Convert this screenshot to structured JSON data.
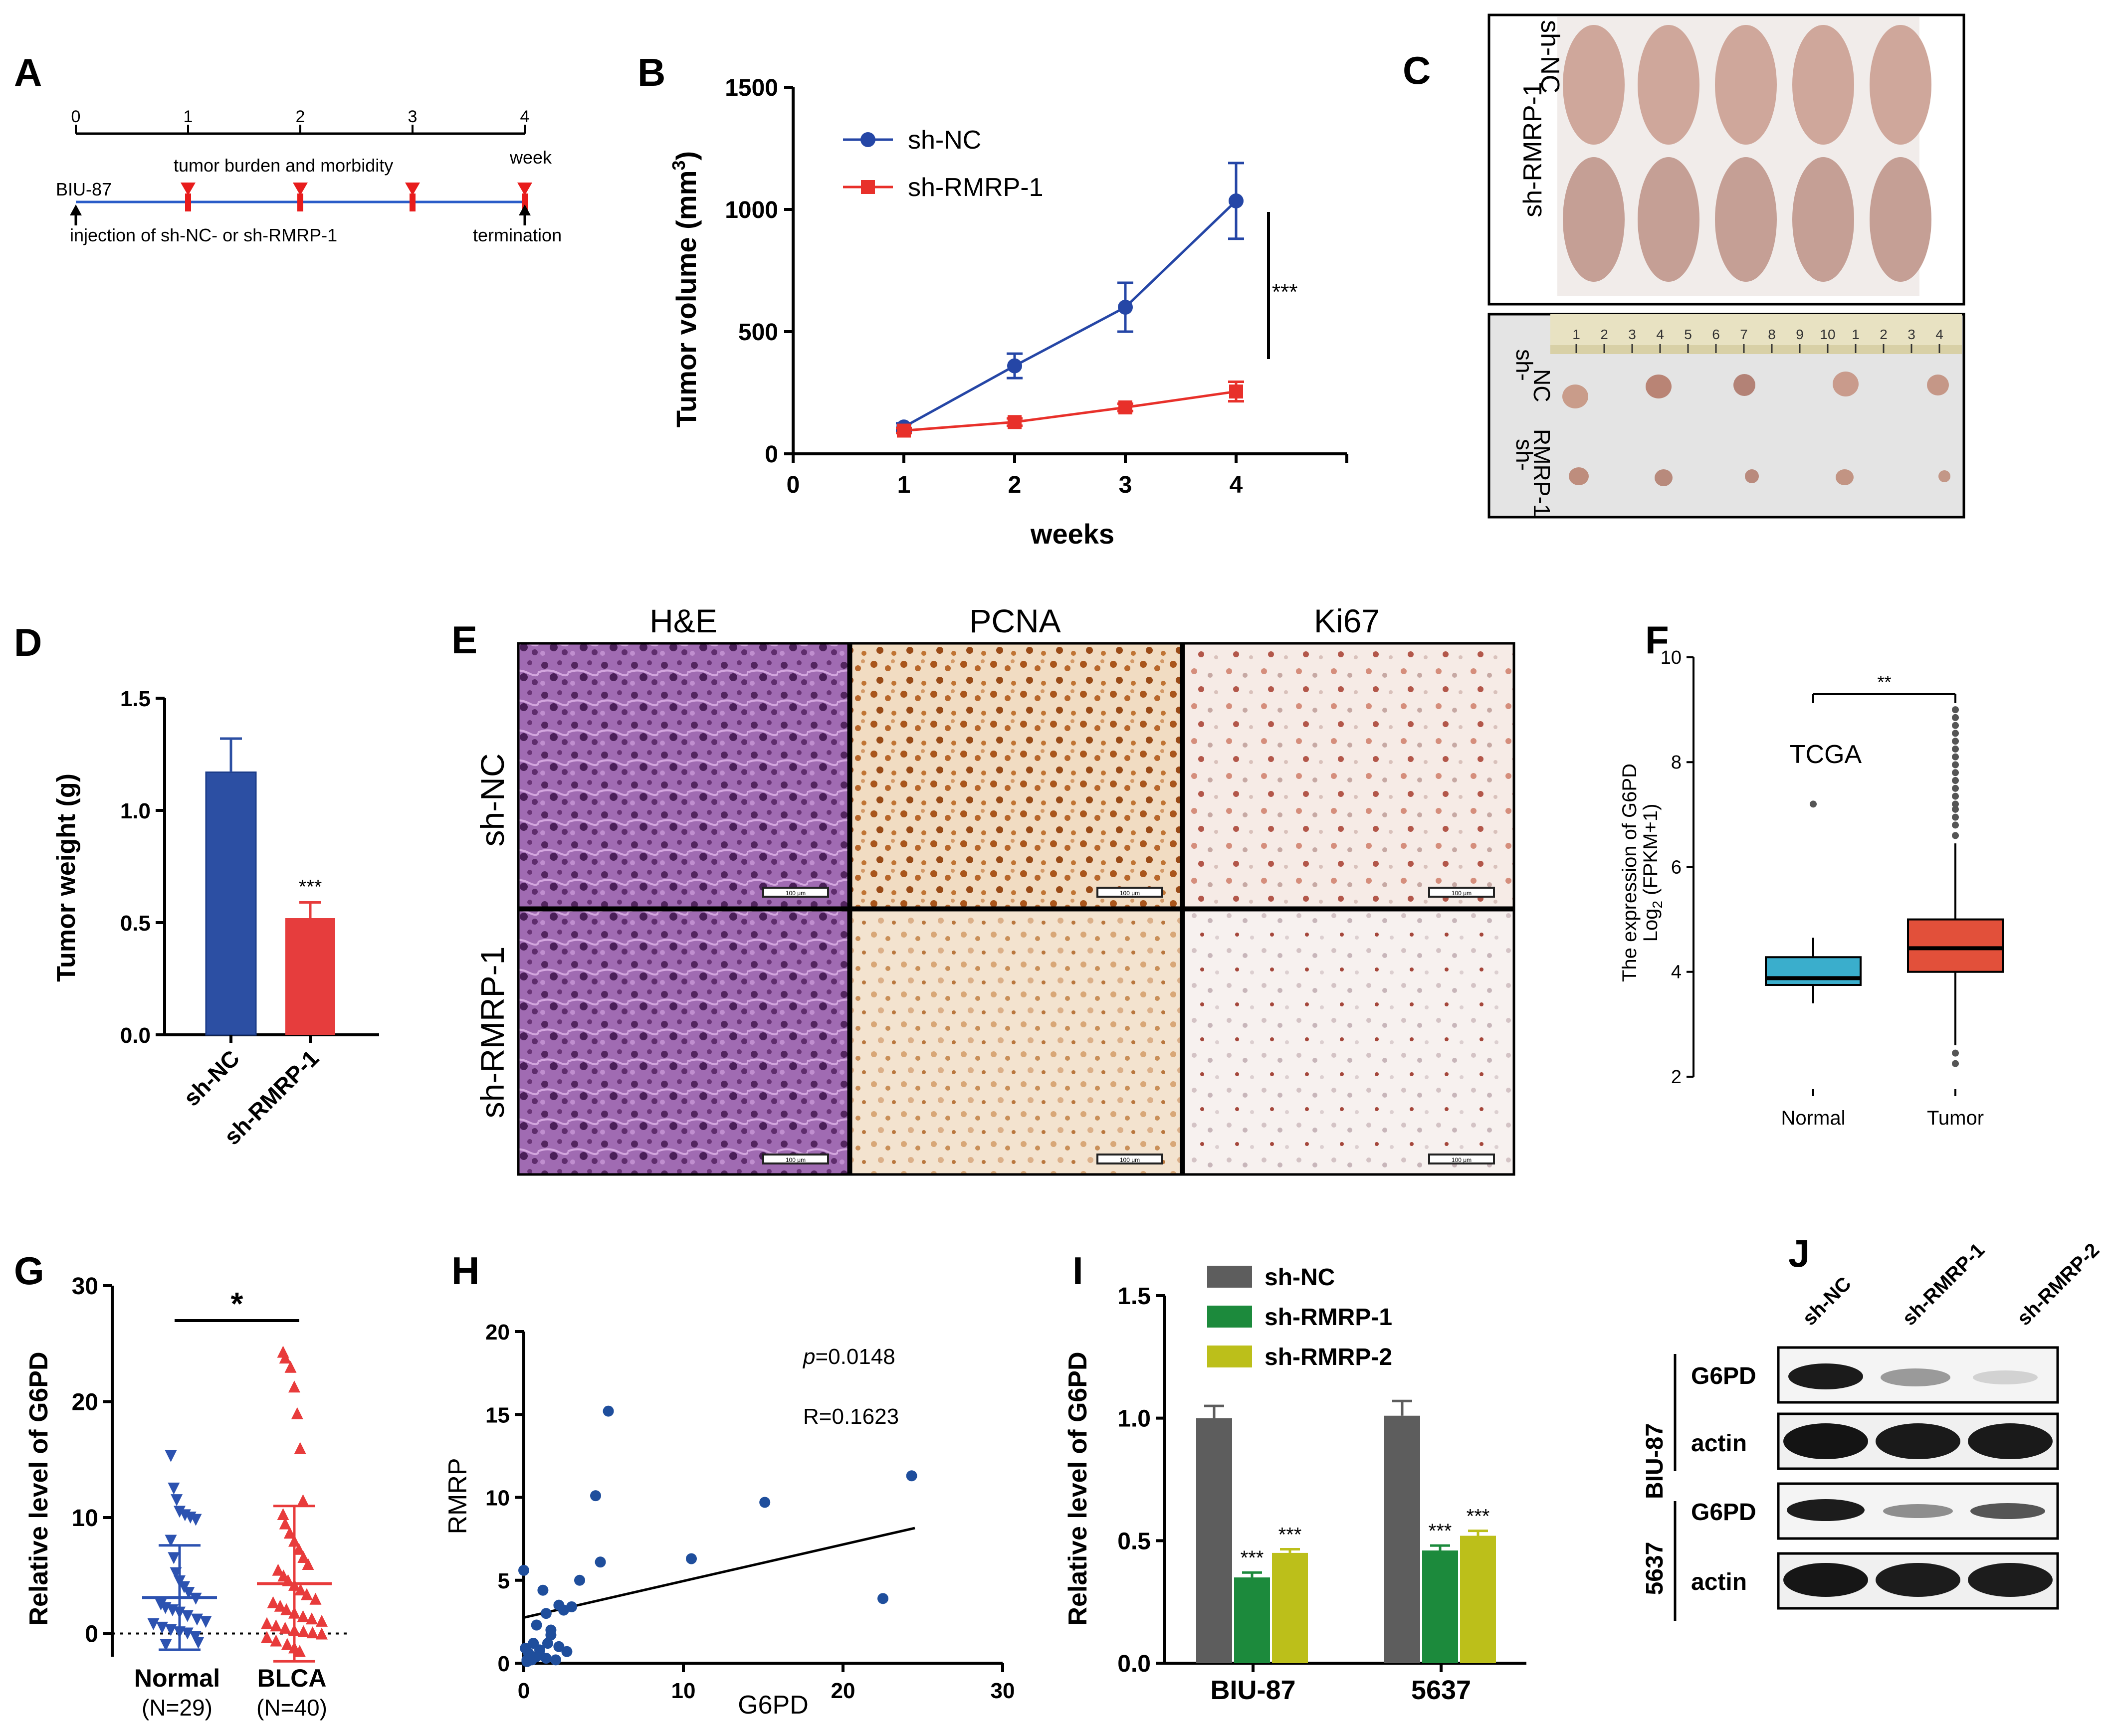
{
  "panel_letters": [
    "A",
    "B",
    "C",
    "D",
    "E",
    "F",
    "G",
    "H",
    "I",
    "J"
  ],
  "colors": {
    "sh_nc_blue": "#2546a6",
    "sh_rmrp_red": "#e8302a",
    "bar_blue": "#2c4fa3",
    "bar_red": "#e63d3d",
    "tcga_normal": "#3aaecc",
    "tcga_tumor": "#e2503a",
    "g_normal": "#2c52b0",
    "g_blca": "#e83b3b",
    "scatter_dot": "#1f4e9c",
    "i_nc": "#5d5d5d",
    "i_rmrp1": "#1c8a3c",
    "i_rmrp2": "#bcbf1a",
    "timeline_marker": "#e81c1c",
    "timeline_line": "#2a5cc8"
  },
  "panel_a": {
    "ticks": [
      "0",
      "1",
      "2",
      "3",
      "4"
    ],
    "week_label": "week",
    "burden_label": "tumor burden and morbidity",
    "cell_label": "BIU-87",
    "injection_label": "injection of sh-NC- or sh-RMRP-1",
    "termination_label": "termination"
  },
  "panel_c": {
    "group_top": "sh-NC",
    "group_bottom": "sh-RMRP-1",
    "tumor_row1_a": "sh-",
    "tumor_row1_b": "NC",
    "tumor_row2_a": "sh-",
    "tumor_row2_b": "RMRP-1",
    "ruler_numbers": [
      "1",
      "2",
      "3",
      "4",
      "5",
      "6",
      "7",
      "8",
      "9",
      "10",
      "1",
      "2",
      "3",
      "4"
    ]
  },
  "panel_e": {
    "columns": [
      "H&E",
      "PCNA",
      "Ki67"
    ],
    "rows": [
      "sh-NC",
      "sh-RMRP-1"
    ],
    "scale_label": "100 μm"
  },
  "panel_j": {
    "lanes": [
      "sh-NC",
      "sh-RMRP-1",
      "sh-RMRP-2"
    ],
    "cell_line_1": "BIU-87",
    "cell_line_2": "5637",
    "band_g6pd": "G6PD",
    "band_actin": "actin"
  },
  "chart_data": [
    {
      "panel": "B",
      "type": "line",
      "title": "",
      "xlabel": "weeks",
      "ylabel": "Tumor volume (mm³)",
      "ylabel_main": "Tumor volume (mm",
      "ylabel_sup": "3",
      "ylabel_end": ")",
      "xlim": [
        0,
        5
      ],
      "ylim": [
        0,
        1500
      ],
      "x_ticks": [
        "0",
        "1",
        "2",
        "3",
        "4"
      ],
      "y_ticks": [
        "0",
        "500",
        "1000",
        "1500"
      ],
      "x": [
        1,
        2,
        3,
        4
      ],
      "series": [
        {
          "name": "sh-NC",
          "values": [
            110,
            360,
            600,
            1035
          ],
          "errors": [
            15,
            50,
            100,
            155
          ]
        },
        {
          "name": "sh-RMRP-1",
          "values": [
            95,
            130,
            190,
            255
          ],
          "errors": [
            10,
            15,
            15,
            40
          ]
        }
      ],
      "legend_position": "top-left",
      "annotation": "***"
    },
    {
      "panel": "D",
      "type": "bar",
      "ylabel": "Tumor weight (g)",
      "categories": [
        "sh-NC",
        "sh-RMRP-1"
      ],
      "values": [
        1.17,
        0.52
      ],
      "errors": [
        0.15,
        0.07
      ],
      "ylim": [
        0,
        1.5
      ],
      "y_ticks": [
        "0.0",
        "0.5",
        "1.0",
        "1.5"
      ],
      "annotations": [
        "",
        "***"
      ]
    },
    {
      "panel": "F",
      "type": "box",
      "ylabel_line1": "The expression of G6PD",
      "ylabel_line2_main": "Log",
      "ylabel_line2_sub": "2",
      "ylabel_line2_end": " (FPKM+1)",
      "categories": [
        "Normal",
        "Tumor"
      ],
      "boxes": [
        {
          "name": "Normal",
          "q1": 3.75,
          "median": 3.88,
          "q3": 4.28,
          "whisker_low": 3.4,
          "whisker_high": 4.65,
          "outliers": [
            7.2
          ]
        },
        {
          "name": "Tumor",
          "q1": 4.0,
          "median": 4.45,
          "q3": 5.0,
          "whisker_low": 2.6,
          "whisker_high": 6.45,
          "outliers": [
            2.25,
            2.45,
            6.6,
            6.8,
            6.95,
            7.1,
            7.2,
            7.35,
            7.5,
            7.65,
            7.8,
            7.95,
            8.1,
            8.25,
            8.4,
            8.55,
            8.7,
            8.85,
            9.0
          ]
        }
      ],
      "ylim": [
        1.8,
        10
      ],
      "y_ticks": [
        "2",
        "4",
        "6",
        "8",
        "10"
      ],
      "annotation_text": "TCGA",
      "significance": "**"
    },
    {
      "panel": "G",
      "type": "scatter",
      "ylabel": "Relative level of G6PD",
      "categories": [
        "Normal",
        "BLCA"
      ],
      "category_n": [
        "(N=29)",
        "(N=40)"
      ],
      "means": [
        3.1,
        4.3
      ],
      "sd": [
        4.5,
        6.7
      ],
      "normal_values": [
        15.3,
        12.5,
        11.5,
        10.5,
        10.2,
        10.0,
        9.8,
        8.0,
        6.5,
        5.2,
        4.5,
        4.0,
        3.5,
        3.0,
        2.5,
        2.2,
        2.0,
        1.8,
        1.5,
        1.2,
        1.0,
        0.8,
        0.5,
        0.3,
        0.1,
        0.0,
        -0.3,
        -0.8,
        -1.0
      ],
      "blca_values": [
        24.3,
        23.8,
        23.0,
        21.3,
        19.0,
        16.0,
        11.5,
        10.3,
        9.5,
        8.7,
        8.0,
        7.3,
        6.6,
        6.0,
        5.5,
        5.0,
        4.6,
        4.2,
        3.8,
        3.4,
        3.0,
        2.7,
        2.4,
        2.1,
        1.8,
        1.5,
        1.3,
        1.1,
        0.9,
        0.7,
        0.5,
        0.3,
        0.2,
        0.1,
        0.0,
        -0.3,
        -0.6,
        -0.9,
        -1.2,
        -1.5
      ],
      "ylim": [
        -2,
        30
      ],
      "y_ticks": [
        "0",
        "10",
        "20",
        "30"
      ],
      "significance": "*"
    },
    {
      "panel": "H",
      "type": "scatter",
      "xlabel": "G6PD",
      "ylabel": "RMRP",
      "x": [
        0.0,
        0.2,
        0.3,
        0.5,
        0.6,
        0.8,
        1.0,
        1.2,
        1.4,
        1.5,
        1.7,
        2.0,
        2.2,
        2.5,
        2.7,
        3.0,
        3.5,
        4.5,
        4.8,
        5.3,
        10.5,
        15.1,
        22.5,
        24.3,
        1.0,
        1.4,
        2.2,
        0.1,
        0.2,
        0.8,
        0.5,
        1.7
      ],
      "y": [
        5.6,
        0.2,
        0.6,
        0.3,
        1.2,
        2.3,
        0.5,
        4.4,
        3.0,
        1.2,
        2.0,
        0.2,
        3.5,
        3.2,
        0.7,
        3.4,
        5.0,
        10.1,
        6.1,
        15.2,
        6.3,
        9.7,
        3.9,
        11.3,
        0.8,
        0.3,
        1.0,
        0.9,
        0.1,
        0.4,
        0.2,
        1.7
      ],
      "fit_line": {
        "x0": 0,
        "y0": 2.75,
        "x1": 24.5,
        "y1": 8.15
      },
      "xlim": [
        0,
        30
      ],
      "ylim": [
        0,
        20
      ],
      "x_ticks": [
        "0",
        "10",
        "20",
        "30"
      ],
      "y_ticks": [
        "0",
        "5",
        "10",
        "15",
        "20"
      ],
      "p_prefix": "p",
      "p_value": "=0.0148",
      "r_text": "R=0.1623"
    },
    {
      "panel": "I",
      "type": "bar",
      "ylabel": "Relative level of G6PD",
      "categories": [
        "BIU-87",
        "5637"
      ],
      "series": [
        {
          "name": "sh-NC",
          "values": [
            1.0,
            1.01
          ],
          "errors": [
            0.05,
            0.06
          ],
          "marks": [
            "",
            ""
          ]
        },
        {
          "name": "sh-RMRP-1",
          "values": [
            0.35,
            0.46
          ],
          "errors": [
            0.02,
            0.02
          ],
          "marks": [
            "***",
            "***"
          ]
        },
        {
          "name": "sh-RMRP-2",
          "values": [
            0.45,
            0.52
          ],
          "errors": [
            0.015,
            0.02
          ],
          "marks": [
            "***",
            "***"
          ]
        }
      ],
      "ylim": [
        0,
        1.5
      ],
      "y_ticks": [
        "0.0",
        "0.5",
        "1.0",
        "1.5"
      ],
      "legend_position": "top"
    }
  ]
}
